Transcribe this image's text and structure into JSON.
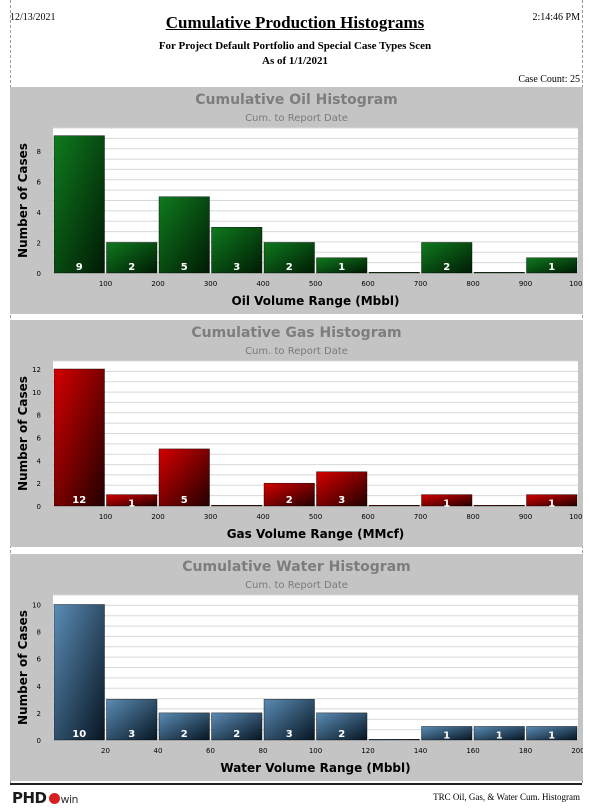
{
  "header": {
    "date": "12/13/2021",
    "time": "2:14:46 PM",
    "title": "Cumulative Production Histograms",
    "subtitle1": "For Project Default Portfolio and Special Case Types Scen",
    "subtitle2": "As of 1/1/2021",
    "case_count": "Case Count: 25"
  },
  "footer": {
    "logo": "PHD",
    "logo_suffix": "win",
    "right": "TRC Oil, Gas, & Water Cum. Histogram"
  },
  "colors": {
    "oil": [
      "#0f7a1e",
      "#001a04"
    ],
    "gas": [
      "#d40000",
      "#220000"
    ],
    "water": [
      "#5b8cb5",
      "#061522"
    ],
    "panel_bg": "#c4c4c4",
    "panel_title": "#7d7d7d"
  },
  "chart_data": [
    {
      "type": "bar",
      "title": "Cumulative Oil Histogram",
      "subtitle": "Cum. to Report Date",
      "xlabel": "Oil Volume Range (Mbbl)",
      "ylabel": "Number of Cases",
      "x_ticks": [
        "100",
        "200",
        "300",
        "400",
        "500",
        "600",
        "700",
        "800",
        "900",
        "1000"
      ],
      "y_ticks": [
        "0",
        "2",
        "4",
        "6",
        "8"
      ],
      "ylim": [
        0,
        9.5
      ],
      "values": [
        9,
        2,
        5,
        3,
        2,
        1,
        0,
        2,
        0,
        1
      ],
      "color": "oil"
    },
    {
      "type": "bar",
      "title": "Cumulative Gas Histogram",
      "subtitle": "Cum. to Report Date",
      "xlabel": "Gas Volume Range (MMcf)",
      "ylabel": "Number of Cases",
      "x_ticks": [
        "100",
        "200",
        "300",
        "400",
        "500",
        "600",
        "700",
        "800",
        "900",
        "1000"
      ],
      "y_ticks": [
        "0",
        "2",
        "4",
        "6",
        "8",
        "10",
        "12"
      ],
      "ylim": [
        0,
        12.7
      ],
      "values": [
        12,
        1,
        5,
        0,
        2,
        3,
        0,
        1,
        0,
        1
      ],
      "color": "gas"
    },
    {
      "type": "bar",
      "title": "Cumulative Water Histogram",
      "subtitle": "Cum. to Report Date",
      "xlabel": "Water Volume Range (Mbbl)",
      "ylabel": "Number of Cases",
      "x_ticks": [
        "20",
        "40",
        "60",
        "80",
        "100",
        "120",
        "140",
        "160",
        "180",
        "200"
      ],
      "y_ticks": [
        "0",
        "2",
        "4",
        "6",
        "8",
        "10"
      ],
      "ylim": [
        0,
        10.7
      ],
      "values": [
        10,
        3,
        2,
        2,
        3,
        2,
        0,
        1,
        1,
        1
      ],
      "color": "water"
    }
  ]
}
